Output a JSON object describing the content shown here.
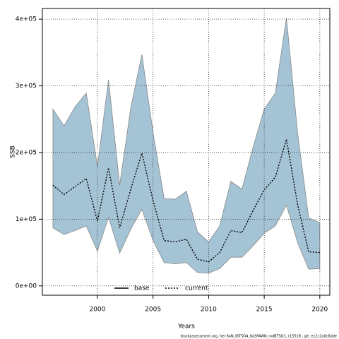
{
  "chart_data": {
    "type": "band-line",
    "x_label": "Years",
    "y_label": "SSB",
    "footnote": "stockassessment.org, her.6aN_IBTSQ4_6aSPAWN_noIBTSQ1, r15518 , git: ec2c2a0c6dde",
    "x": [
      1996,
      1997,
      1998,
      1999,
      2000,
      2001,
      2002,
      2003,
      2004,
      2005,
      2006,
      2007,
      2008,
      2009,
      2010,
      2011,
      2012,
      2013,
      2014,
      2015,
      2016,
      2017,
      2018,
      2019,
      2020
    ],
    "series": [
      {
        "name": "current",
        "color": "#000000",
        "band_color": "#a4c3d5",
        "values": [
          151000,
          137000,
          149000,
          161000,
          97000,
          177000,
          87000,
          145000,
          199000,
          128000,
          68000,
          66000,
          70000,
          40000,
          36000,
          50000,
          83000,
          80000,
          113000,
          144000,
          163000,
          220000,
          122000,
          51000,
          50000
        ],
        "upper": [
          265000,
          240000,
          269000,
          289000,
          179000,
          309000,
          151000,
          267000,
          347000,
          230000,
          131000,
          130000,
          142000,
          81000,
          66000,
          90000,
          157000,
          145000,
          208000,
          265000,
          289000,
          402000,
          230000,
          102000,
          95000
        ],
        "lower": [
          87000,
          77000,
          83000,
          90000,
          52000,
          103000,
          49000,
          85000,
          115000,
          68000,
          35000,
          33000,
          35000,
          20000,
          19000,
          26000,
          43000,
          43000,
          60000,
          79000,
          90000,
          121000,
          65000,
          25000,
          26000
        ]
      }
    ],
    "legend": [
      {
        "name": "base",
        "color": "#000000",
        "style": "solid"
      },
      {
        "name": "current",
        "color": "#000000",
        "style": "dotted"
      }
    ],
    "xlim": [
      1995.05,
      2020.9
    ],
    "ylim": [
      -14000,
      416000
    ],
    "xticks": [
      2000,
      2005,
      2010,
      2015,
      2020
    ],
    "yticks": [
      {
        "value": 0,
        "label": "0e+00"
      },
      {
        "value": 100000,
        "label": "1e+05"
      },
      {
        "value": 200000,
        "label": "2e+05"
      },
      {
        "value": 300000,
        "label": "3e+05"
      },
      {
        "value": 400000,
        "label": "4e+05"
      }
    ],
    "grid": true
  }
}
